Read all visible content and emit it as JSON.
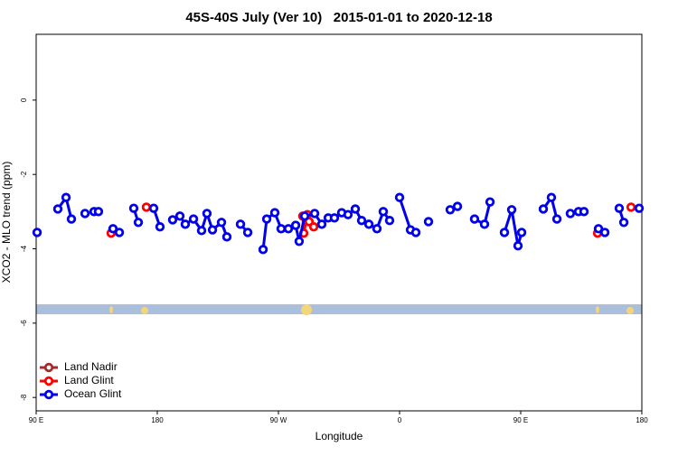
{
  "chart_data": {
    "type": "line",
    "title": "45S-40S July (Ver 10)   2015-01-01 to 2020-12-18",
    "xlabel": "Longitude",
    "ylabel": "XCO2 - MLO trend (ppm)",
    "xlim": [
      90,
      540
    ],
    "ylim": [
      -8.36,
      1.77
    ],
    "xticks": [
      {
        "value": 90,
        "label": "90 E"
      },
      180,
      {
        "value": 270,
        "label": "90 W"
      },
      {
        "value": 360,
        "label": "0"
      },
      {
        "value": 450,
        "label": "90 E"
      },
      {
        "value": 540,
        "label": "180"
      }
    ],
    "yticks": [
      0,
      -2,
      -4,
      -6,
      -8
    ],
    "legend": "bottomleft",
    "series": [
      {
        "name": "Land Nadir",
        "color": "#a52a2a",
        "x": [],
        "values": []
      },
      {
        "name": "Land Glint",
        "color": "#ff0000",
        "x": [
          145.7,
          null,
          171.9,
          null,
          288.1,
          288.8,
          291.5,
          292.8,
          296.2,
          null,
          507.1,
          null,
          532
        ],
        "values": [
          -3.58,
          null,
          -2.88,
          null,
          -3.12,
          -3.58,
          -3.08,
          -3.27,
          -3.41,
          null,
          -3.58,
          null,
          -2.88
        ]
      },
      {
        "name": "Ocean Glint",
        "color": "#0000ee",
        "x": [
          90.7,
          null,
          106.1,
          112.2,
          116.2,
          null,
          126.3,
          null,
          133,
          136.3,
          null,
          147.1,
          151.8,
          null,
          162.5,
          165.9,
          null,
          177.3,
          182,
          null,
          191.4,
          196.8,
          200.8,
          206.9,
          212.9,
          216.9,
          221,
          227.7,
          231.7,
          null,
          241.8,
          247.2,
          null,
          258.6,
          261.3,
          267.3,
          272,
          277.4,
          null,
          282.8,
          285.4,
          289.5,
          296.9,
          302.2,
          null,
          307,
          311.6,
          317,
          321.7,
          327.1,
          331.8,
          337.2,
          343.2,
          347.9,
          352.6,
          null,
          360,
          368.1,
          372.1,
          null,
          381.5,
          null,
          397.6,
          403,
          null,
          415.7,
          423.1,
          427.2,
          null,
          437.9,
          443.3,
          448,
          450.7,
          null,
          466.8,
          472.8,
          476.9,
          null,
          486.9,
          493,
          497,
          null,
          507.8,
          512.5,
          null,
          523.2,
          526.6,
          null,
          538
        ],
        "values": [
          -3.56,
          null,
          -2.93,
          -2.62,
          -3.2,
          null,
          -3.05,
          null,
          -3.0,
          -3.0,
          null,
          -3.46,
          -3.56,
          null,
          -2.91,
          -3.29,
          null,
          -2.91,
          -3.41,
          null,
          -3.22,
          -3.12,
          -3.34,
          -3.2,
          -3.51,
          -3.05,
          -3.49,
          -3.29,
          -3.68,
          null,
          -3.34,
          -3.56,
          null,
          -4.02,
          -3.2,
          -3.03,
          -3.46,
          -3.46,
          null,
          -3.37,
          -3.8,
          -3.12,
          -3.05,
          -3.34,
          null,
          -3.17,
          -3.17,
          -3.03,
          -3.08,
          -2.93,
          -3.24,
          -3.34,
          -3.46,
          -3.0,
          -3.24,
          null,
          -2.62,
          -3.49,
          -3.56,
          null,
          -3.27,
          null,
          -2.95,
          -2.86,
          null,
          -3.2,
          -3.34,
          -2.74,
          null,
          -3.56,
          -2.95,
          -3.92,
          -3.56,
          null,
          -2.93,
          -2.62,
          -3.2,
          null,
          -3.05,
          -3.0,
          -3.0,
          null,
          -3.46,
          -3.56,
          null,
          -2.91,
          -3.29,
          null,
          -2.91
        ]
      }
    ]
  }
}
